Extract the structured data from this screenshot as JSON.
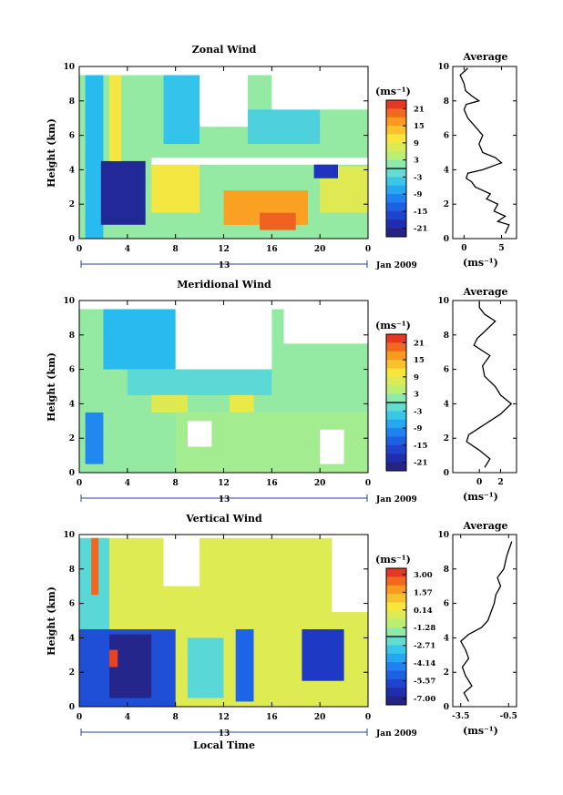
{
  "panels": [
    {
      "id": "zonal",
      "title": "Zonal Wind",
      "ylabel": "Height (km)",
      "xticks": [
        "0",
        "4",
        "8",
        "12",
        "16",
        "20",
        "0"
      ],
      "date_mid": "13",
      "date_label": "Jan 2009",
      "units": "(ms⁻¹)",
      "colorbar_ticks": [
        "21",
        "15",
        "9",
        "3",
        "-3",
        "-9",
        "-15",
        "-21"
      ],
      "average_title": "Average",
      "average_xticks": [
        "0",
        "5"
      ],
      "average_xlabel": "(ms⁻¹)"
    },
    {
      "id": "meridional",
      "title": "Meridional Wind",
      "ylabel": "Height (km)",
      "xticks": [
        "0",
        "4",
        "8",
        "12",
        "16",
        "20",
        "0"
      ],
      "date_mid": "13",
      "date_label": "Jan 2009",
      "units": "(ms⁻¹)",
      "colorbar_ticks": [
        "21",
        "15",
        "9",
        "3",
        "-3",
        "-9",
        "-15",
        "-21"
      ],
      "average_title": "Average",
      "average_xticks": [
        "0",
        "2"
      ],
      "average_xlabel": "(ms⁻¹)"
    },
    {
      "id": "vertical",
      "title": "Vertical Wind",
      "ylabel": "Height (km)",
      "xticks": [
        "0",
        "4",
        "8",
        "12",
        "16",
        "20",
        "0"
      ],
      "date_mid": "13",
      "date_label": "Jan 2009",
      "xlabel": "Local Time",
      "units": "(ms⁻¹)",
      "colorbar_ticks": [
        "3.00",
        "1.57",
        "0.14",
        "-1.28",
        "-2.71",
        "-4.14",
        "-5.57",
        "-7.00"
      ],
      "average_title": "Average",
      "average_xticks": [
        "-3.5",
        "-0.5"
      ],
      "average_xlabel": "(ms⁻¹)"
    }
  ],
  "chart_data": [
    {
      "type": "heatmap",
      "panel": "zonal",
      "title": "Zonal Wind",
      "xlabel": "",
      "ylabel": "Height (km)",
      "xlim": [
        0,
        24
      ],
      "ylim": [
        0,
        10
      ],
      "colorbar": {
        "label": "(ms⁻¹)",
        "range": [
          -24,
          24
        ],
        "ticks": [
          21,
          15,
          9,
          3,
          -3,
          -9,
          -15,
          -21
        ]
      },
      "regions": [
        {
          "x": [
            0,
            24
          ],
          "y": [
            0,
            9.5
          ],
          "value": 2
        },
        {
          "x": [
            0.5,
            2
          ],
          "y": [
            0,
            9.5
          ],
          "value": -6
        },
        {
          "x": [
            1.8,
            5.5
          ],
          "y": [
            0.8,
            4.5
          ],
          "value": -21
        },
        {
          "x": [
            2.5,
            3.5
          ],
          "y": [
            4.5,
            9.5
          ],
          "value": 10
        },
        {
          "x": [
            6,
            10
          ],
          "y": [
            1.5,
            4.5
          ],
          "value": 10
        },
        {
          "x": [
            12,
            19
          ],
          "y": [
            0.8,
            2.8
          ],
          "value": 16
        },
        {
          "x": [
            15,
            18
          ],
          "y": [
            0.5,
            1.5
          ],
          "value": 20
        },
        {
          "x": [
            20,
            24
          ],
          "y": [
            1.5,
            4.2
          ],
          "value": 8
        },
        {
          "x": [
            7,
            10
          ],
          "y": [
            5.5,
            9.5
          ],
          "value": -5
        },
        {
          "x": [
            14,
            20
          ],
          "y": [
            5.5,
            7.5
          ],
          "value": -3
        },
        {
          "x": [
            10,
            14
          ],
          "y": [
            6.5,
            9.5
          ],
          "value": null
        },
        {
          "x": [
            16,
            24
          ],
          "y": [
            7.5,
            9.5
          ],
          "value": null
        },
        {
          "x": [
            6,
            24
          ],
          "y": [
            4.3,
            4.7
          ],
          "value": null
        },
        {
          "x": [
            19.5,
            21.5
          ],
          "y": [
            3.5,
            4.3
          ],
          "value": -18
        }
      ],
      "average_profile": {
        "xlim": [
          -1.5,
          7
        ],
        "ylim": [
          0,
          10
        ],
        "x": [
          5.5,
          6.0,
          4.5,
          5.5,
          4.0,
          4.5,
          3.0,
          3.5,
          1.5,
          1.0,
          0.3,
          0.5,
          2.5,
          5.0,
          4.2,
          2.5,
          2.0,
          2.5,
          1.5,
          0.5,
          0.0,
          0.3,
          2.0,
          1.0,
          0.2,
          0.0,
          -0.5,
          0.5
        ],
        "y": [
          0.3,
          0.8,
          1.0,
          1.3,
          1.6,
          2.0,
          2.3,
          2.6,
          3.0,
          3.3,
          3.5,
          3.8,
          4.0,
          4.4,
          4.7,
          5.0,
          5.5,
          6.0,
          6.5,
          7.0,
          7.5,
          7.8,
          8.0,
          8.3,
          8.6,
          9.0,
          9.5,
          9.9
        ]
      }
    },
    {
      "type": "heatmap",
      "panel": "meridional",
      "title": "Meridional Wind",
      "xlabel": "",
      "ylabel": "Height (km)",
      "xlim": [
        0,
        24
      ],
      "ylim": [
        0,
        10
      ],
      "colorbar": {
        "label": "(ms⁻¹)",
        "range": [
          -24,
          24
        ],
        "ticks": [
          21,
          15,
          9,
          3,
          -3,
          -9,
          -15,
          -21
        ]
      },
      "regions": [
        {
          "x": [
            0,
            24
          ],
          "y": [
            0,
            9.5
          ],
          "value": 2
        },
        {
          "x": [
            0.5,
            2
          ],
          "y": [
            0.5,
            3.5
          ],
          "value": -10
        },
        {
          "x": [
            2,
            8
          ],
          "y": [
            6,
            9.5
          ],
          "value": -6
        },
        {
          "x": [
            8,
            16
          ],
          "y": [
            6,
            9.5
          ],
          "value": null
        },
        {
          "x": [
            4,
            16
          ],
          "y": [
            4.5,
            6
          ],
          "value": -2
        },
        {
          "x": [
            6,
            9
          ],
          "y": [
            3.5,
            4.5
          ],
          "value": 8
        },
        {
          "x": [
            12.5,
            14.5
          ],
          "y": [
            3.5,
            4.5
          ],
          "value": 9
        },
        {
          "x": [
            8,
            24
          ],
          "y": [
            0,
            3.5
          ],
          "value": 3
        },
        {
          "x": [
            20,
            22
          ],
          "y": [
            0.5,
            2.5
          ],
          "value": null
        },
        {
          "x": [
            9,
            11
          ],
          "y": [
            1.5,
            3.0
          ],
          "value": null
        },
        {
          "x": [
            17,
            24
          ],
          "y": [
            7.5,
            9.5
          ],
          "value": null
        }
      ],
      "average_profile": {
        "xlim": [
          -2.5,
          3.5
        ],
        "ylim": [
          0,
          10
        ],
        "x": [
          0.5,
          1.0,
          0.0,
          -1.2,
          -1.0,
          0.5,
          2.0,
          3.0,
          2.0,
          1.5,
          0.5,
          0.3,
          1.0,
          -0.5,
          -0.2,
          0.5,
          1.5,
          0.5,
          0.0,
          0.0
        ],
        "y": [
          0.3,
          0.8,
          1.3,
          1.8,
          2.2,
          2.8,
          3.4,
          4.0,
          4.5,
          5.0,
          5.6,
          6.2,
          6.8,
          7.4,
          7.8,
          8.2,
          8.8,
          9.2,
          9.6,
          9.9
        ]
      }
    },
    {
      "type": "heatmap",
      "panel": "vertical",
      "title": "Vertical Wind",
      "xlabel": "Local Time",
      "ylabel": "Height (km)",
      "xlim": [
        0,
        24
      ],
      "ylim": [
        0,
        10
      ],
      "colorbar": {
        "label": "(ms⁻¹)",
        "range": [
          -7.5,
          3.5
        ],
        "ticks": [
          3.0,
          1.57,
          0.14,
          -1.28,
          -2.71,
          -4.14,
          -5.57,
          -7.0
        ]
      },
      "regions": [
        {
          "x": [
            0,
            24
          ],
          "y": [
            0,
            9.8
          ],
          "value": -0.2
        },
        {
          "x": [
            0,
            2.5
          ],
          "y": [
            0,
            9.8
          ],
          "value": -2.5
        },
        {
          "x": [
            1,
            1.6
          ],
          "y": [
            6.5,
            9.8
          ],
          "value": 2.5
        },
        {
          "x": [
            0,
            8
          ],
          "y": [
            0,
            4.5
          ],
          "value": -5.5
        },
        {
          "x": [
            2.5,
            6
          ],
          "y": [
            0.5,
            4.2
          ],
          "value": -7.0
        },
        {
          "x": [
            2.5,
            3.2
          ],
          "y": [
            2.3,
            3.3
          ],
          "value": 3.0
        },
        {
          "x": [
            13,
            14.5
          ],
          "y": [
            0.3,
            4.5
          ],
          "value": -5.0
        },
        {
          "x": [
            18.5,
            22
          ],
          "y": [
            1.5,
            4.5
          ],
          "value": -6.0
        },
        {
          "x": [
            9,
            12
          ],
          "y": [
            0.5,
            4
          ],
          "value": -2.5
        },
        {
          "x": [
            7,
            10
          ],
          "y": [
            7,
            9.8
          ],
          "value": null
        },
        {
          "x": [
            21,
            24
          ],
          "y": [
            5.5,
            9.8
          ],
          "value": null
        }
      ],
      "average_profile": {
        "xlim": [
          -4.0,
          0.0
        ],
        "ylim": [
          0,
          10
        ],
        "x": [
          -3.0,
          -3.3,
          -2.8,
          -3.2,
          -3.4,
          -3.0,
          -3.2,
          -3.5,
          -3.0,
          -2.2,
          -1.8,
          -1.6,
          -1.4,
          -1.3,
          -1.0,
          -1.2,
          -0.8,
          -0.6,
          -0.3
        ],
        "y": [
          0.3,
          0.8,
          1.2,
          1.8,
          2.3,
          2.8,
          3.3,
          3.8,
          4.2,
          4.6,
          5.0,
          5.5,
          6.0,
          6.5,
          7.0,
          7.5,
          8.0,
          8.8,
          9.6
        ]
      }
    }
  ]
}
